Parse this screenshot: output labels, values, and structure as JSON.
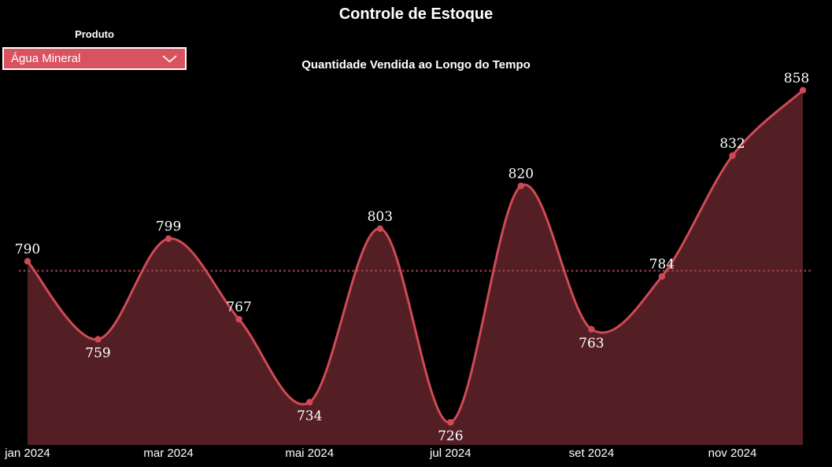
{
  "page": {
    "title": "Controle de Estoque",
    "background": "#000000"
  },
  "filter": {
    "label": "Produto",
    "selected": "Água Mineral",
    "accent": "#d9525f"
  },
  "chart": {
    "subtitle": "Quantidade Vendida ao Longo do Tempo"
  },
  "chart_data": {
    "type": "area",
    "title": "Quantidade Vendida ao Longo do Tempo",
    "series": [
      {
        "name": "Quantidade Vendida",
        "values": [
          790,
          759,
          799,
          767,
          734,
          803,
          726,
          820,
          763,
          784,
          832,
          858
        ]
      }
    ],
    "point_labels": [
      "790",
      "759",
      "799",
      "767",
      "734",
      "803",
      "726",
      "820",
      "763",
      "784",
      "832",
      "858"
    ],
    "x_tick_labels": [
      "jan 2024",
      "mar 2024",
      "mai 2024",
      "jul 2024",
      "set 2024",
      "nov 2024"
    ],
    "x_tick_every": 2,
    "reference_line": {
      "style": "dotted",
      "value": 786.25,
      "meaning": "average"
    },
    "axis": {
      "y_min": 717,
      "y_visible": false,
      "grid": false
    },
    "legend": "none",
    "colors": {
      "line": "#d04a55",
      "fill": "#541e25",
      "marker": "#d04a55",
      "reference": "#9a4148",
      "label": "#ffffff"
    }
  }
}
